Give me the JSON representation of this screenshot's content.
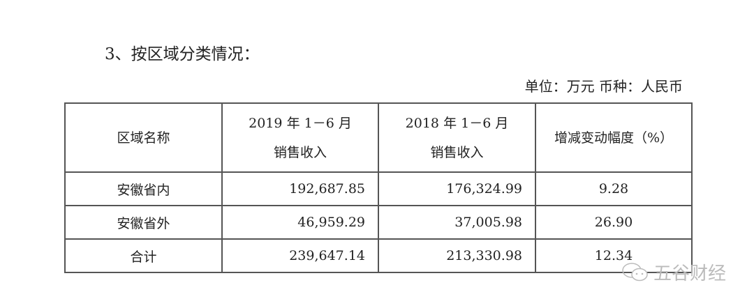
{
  "heading": "3、按区域分类情况：",
  "unit": "单位：万元  币种：人民币",
  "table": {
    "headers": [
      {
        "line1": "区域名称",
        "line2": ""
      },
      {
        "line1": "2019 年 1－6 月",
        "line2": "销售收入"
      },
      {
        "line1": "2018 年 1－6 月",
        "line2": "销售收入"
      },
      {
        "line1": "增减变动幅度（%）",
        "line2": ""
      }
    ],
    "rows": [
      [
        "安徽省内",
        "192,687.85",
        "176,324.99",
        "9.28"
      ],
      [
        "安徽省外",
        "46,959.29",
        "37,005.98",
        "26.90"
      ],
      [
        "合计",
        "239,647.14",
        "213,330.98",
        "12.34"
      ]
    ]
  },
  "watermark": {
    "text": "五谷财经",
    "icon": "wechat-icon"
  }
}
